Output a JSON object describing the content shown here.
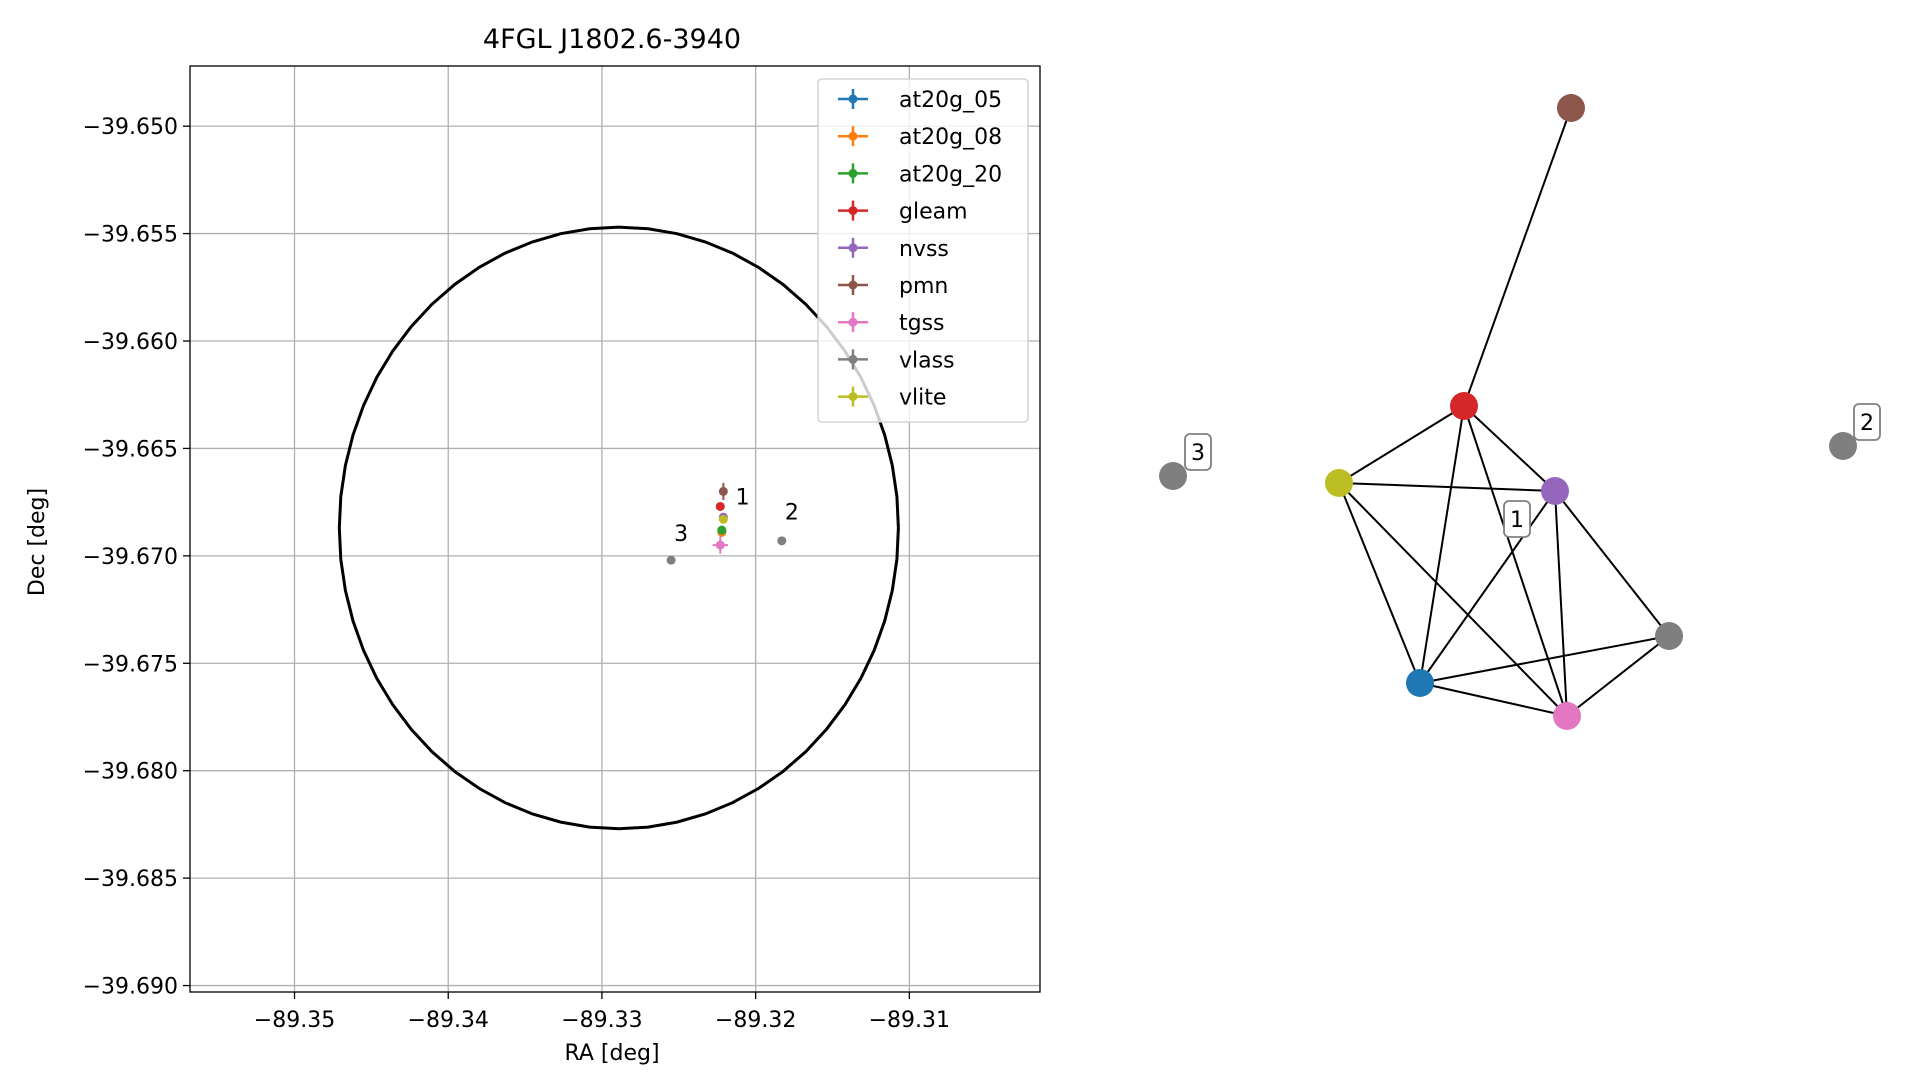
{
  "chart_data": [
    {
      "type": "scatter",
      "title": "4FGL J1802.6-3940",
      "xlabel": "RA [deg]",
      "ylabel": "Dec [deg]",
      "xlim": [
        -89.3568,
        -89.3015
      ],
      "ylim": [
        -39.6903,
        -39.6472
      ],
      "xticks": [
        -89.35,
        -89.34,
        -89.33,
        -89.32,
        -89.31
      ],
      "xtick_labels": [
        "−89.35",
        "−89.34",
        "−89.33",
        "−89.32",
        "−89.31"
      ],
      "yticks": [
        -39.65,
        -39.655,
        -39.66,
        -39.665,
        -39.67,
        -39.675,
        -39.68,
        -39.685,
        -39.69
      ],
      "ytick_labels": [
        "−39.650",
        "−39.655",
        "−39.660",
        "−39.665",
        "−39.670",
        "−39.675",
        "−39.680",
        "−39.685",
        "−39.690"
      ],
      "grid": true,
      "legend_position": "top-right",
      "circle": {
        "center": [
          -89.3289,
          -39.6687
        ],
        "radius_dec": 0.014,
        "color": "#000000"
      },
      "series": [
        {
          "name": "at20g_05",
          "color": "#1f77b4",
          "points": [
            {
              "x": -89.3222,
              "y": -39.6689,
              "xerr": 0.0001,
              "yerr": 0.0002
            }
          ]
        },
        {
          "name": "at20g_08",
          "color": "#ff7f0e",
          "points": [
            {
              "x": -89.3222,
              "y": -39.6689,
              "xerr": 0.0001,
              "yerr": 0.0002
            }
          ]
        },
        {
          "name": "at20g_20",
          "color": "#2ca02c",
          "points": [
            {
              "x": -89.3222,
              "y": -39.6688,
              "xerr": 0.0001,
              "yerr": 0.0002
            }
          ]
        },
        {
          "name": "gleam",
          "color": "#d62728",
          "points": [
            {
              "x": -89.3223,
              "y": -39.6677,
              "xerr": 0.0,
              "yerr": 0.0
            }
          ]
        },
        {
          "name": "nvss",
          "color": "#9467bd",
          "points": [
            {
              "x": -89.3221,
              "y": -39.6682,
              "xerr": 0.0001,
              "yerr": 0.0001
            }
          ]
        },
        {
          "name": "pmn",
          "color": "#8c564b",
          "points": [
            {
              "x": -89.3221,
              "y": -39.667,
              "xerr": 0.0002,
              "yerr": 0.0004
            }
          ]
        },
        {
          "name": "tgss",
          "color": "#e377c2",
          "points": [
            {
              "x": -89.3223,
              "y": -39.6695,
              "xerr": 0.0005,
              "yerr": 0.0004
            }
          ]
        },
        {
          "name": "vlass",
          "color": "#7f7f7f",
          "points": [
            {
              "x": -89.3183,
              "y": -39.6693,
              "xerr": 0.0,
              "yerr": 0.0
            },
            {
              "x": -89.3255,
              "y": -39.6702,
              "xerr": 0.0,
              "yerr": 0.0
            }
          ]
        },
        {
          "name": "vlite",
          "color": "#bcbd22",
          "points": [
            {
              "x": -89.3221,
              "y": -39.6683,
              "xerr": 0.0001,
              "yerr": 0.0001
            }
          ]
        }
      ],
      "annotations": [
        {
          "text": "1",
          "x": -89.3213,
          "y": -39.6676
        },
        {
          "text": "2",
          "x": -89.3181,
          "y": -39.6683
        },
        {
          "text": "3",
          "x": -89.3253,
          "y": -39.6693
        }
      ]
    },
    {
      "type": "network",
      "nodes": [
        {
          "id": "pmn",
          "color": "#8c564b"
        },
        {
          "id": "gleam",
          "color": "#d62728"
        },
        {
          "id": "vlite",
          "color": "#bcbd22"
        },
        {
          "id": "nvss",
          "color": "#9467bd"
        },
        {
          "id": "vlass-1",
          "color": "#7f7f7f"
        },
        {
          "id": "at20g",
          "color": "#1f77b4"
        },
        {
          "id": "tgss",
          "color": "#e377c2"
        },
        {
          "id": "vlass-2",
          "color": "#7f7f7f"
        },
        {
          "id": "vlass-3",
          "color": "#7f7f7f"
        }
      ],
      "edges": [
        [
          "pmn",
          "gleam"
        ],
        [
          "gleam",
          "vlite"
        ],
        [
          "gleam",
          "nvss"
        ],
        [
          "gleam",
          "at20g"
        ],
        [
          "gleam",
          "tgss"
        ],
        [
          "vlite",
          "nvss"
        ],
        [
          "vlite",
          "at20g"
        ],
        [
          "vlite",
          "tgss"
        ],
        [
          "nvss",
          "at20g"
        ],
        [
          "nvss",
          "tgss"
        ],
        [
          "nvss",
          "vlass-1"
        ],
        [
          "at20g",
          "tgss"
        ],
        [
          "at20g",
          "vlass-1"
        ],
        [
          "tgss",
          "vlass-1"
        ]
      ],
      "labels": [
        {
          "text": "1",
          "group": "main"
        },
        {
          "text": "2",
          "node": "vlass-2"
        },
        {
          "text": "3",
          "node": "vlass-3"
        }
      ]
    }
  ]
}
